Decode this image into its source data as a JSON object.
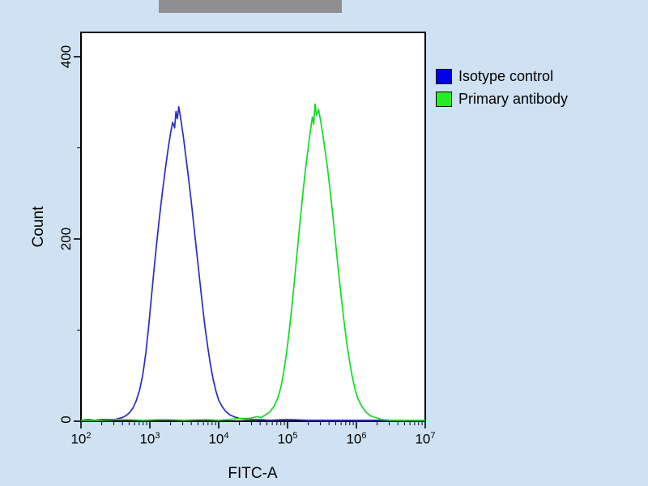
{
  "banner": {
    "text": ""
  },
  "chart_data": {
    "type": "line",
    "subtype": "flow-cytometry-histogram",
    "title": "",
    "xlabel": "FITC-A",
    "ylabel": "Count",
    "x_scale": "log10",
    "xlim": [
      100,
      10000000
    ],
    "ylim": [
      0,
      427
    ],
    "grid": false,
    "legend_position": "upper-right-outside",
    "x_ticks": [
      100,
      1000,
      10000,
      100000,
      1000000,
      10000000
    ],
    "x_ticks_display": [
      {
        "base": "10",
        "exp": "2"
      },
      {
        "base": "10",
        "exp": "3"
      },
      {
        "base": "10",
        "exp": "4"
      },
      {
        "base": "10",
        "exp": "5"
      },
      {
        "base": "10",
        "exp": "6"
      },
      {
        "base": "10",
        "exp": "7"
      }
    ],
    "y_ticks": [
      {
        "value": 0,
        "label": "0"
      },
      {
        "value": 200,
        "label": "200"
      },
      {
        "value": 400,
        "label": "400"
      }
    ],
    "y_minor_ticks": [
      100,
      300
    ],
    "legend": [
      {
        "label": "Isotype control",
        "color": "#0000ee"
      },
      {
        "label": "Primary antibody",
        "color": "#22ee22"
      }
    ],
    "series": [
      {
        "name": "Isotype control",
        "color": "#2a2ac8",
        "peak_x": 2600,
        "peak_count": 345,
        "points_log10x_count": [
          [
            2.0,
            1
          ],
          [
            2.1,
            2
          ],
          [
            2.2,
            1
          ],
          [
            2.3,
            2
          ],
          [
            2.4,
            2
          ],
          [
            2.5,
            2
          ],
          [
            2.55,
            3
          ],
          [
            2.6,
            4
          ],
          [
            2.65,
            6
          ],
          [
            2.7,
            9
          ],
          [
            2.75,
            14
          ],
          [
            2.8,
            22
          ],
          [
            2.85,
            34
          ],
          [
            2.9,
            52
          ],
          [
            2.94,
            74
          ],
          [
            2.98,
            102
          ],
          [
            3.02,
            134
          ],
          [
            3.06,
            166
          ],
          [
            3.1,
            196
          ],
          [
            3.14,
            224
          ],
          [
            3.18,
            250
          ],
          [
            3.22,
            274
          ],
          [
            3.26,
            296
          ],
          [
            3.3,
            316
          ],
          [
            3.33,
            328
          ],
          [
            3.36,
            322
          ],
          [
            3.38,
            340
          ],
          [
            3.4,
            332
          ],
          [
            3.42,
            345
          ],
          [
            3.44,
            336
          ],
          [
            3.46,
            326
          ],
          [
            3.49,
            310
          ],
          [
            3.52,
            292
          ],
          [
            3.56,
            268
          ],
          [
            3.6,
            242
          ],
          [
            3.64,
            214
          ],
          [
            3.68,
            186
          ],
          [
            3.72,
            158
          ],
          [
            3.76,
            130
          ],
          [
            3.8,
            104
          ],
          [
            3.84,
            82
          ],
          [
            3.88,
            62
          ],
          [
            3.92,
            46
          ],
          [
            3.96,
            33
          ],
          [
            4.0,
            23
          ],
          [
            4.05,
            16
          ],
          [
            4.1,
            11
          ],
          [
            4.16,
            7
          ],
          [
            4.22,
            5
          ],
          [
            4.3,
            3
          ],
          [
            4.4,
            2
          ],
          [
            4.55,
            2
          ],
          [
            4.75,
            1
          ],
          [
            5.0,
            2
          ],
          [
            5.3,
            1
          ],
          [
            5.6,
            1
          ],
          [
            6.0,
            1
          ],
          [
            6.5,
            1
          ],
          [
            7.0,
            1
          ]
        ]
      },
      {
        "name": "Primary antibody",
        "color": "#0ddd22",
        "peak_x": 250000,
        "peak_count": 348,
        "points_log10x_count": [
          [
            2.0,
            1
          ],
          [
            2.3,
            1
          ],
          [
            2.6,
            2
          ],
          [
            2.9,
            1
          ],
          [
            3.2,
            2
          ],
          [
            3.5,
            1
          ],
          [
            3.8,
            2
          ],
          [
            4.0,
            1
          ],
          [
            4.15,
            2
          ],
          [
            4.3,
            3
          ],
          [
            4.45,
            3
          ],
          [
            4.55,
            5
          ],
          [
            4.62,
            4
          ],
          [
            4.68,
            7
          ],
          [
            4.74,
            10
          ],
          [
            4.8,
            16
          ],
          [
            4.85,
            24
          ],
          [
            4.9,
            36
          ],
          [
            4.94,
            52
          ],
          [
            4.98,
            72
          ],
          [
            5.02,
            96
          ],
          [
            5.06,
            124
          ],
          [
            5.1,
            154
          ],
          [
            5.14,
            186
          ],
          [
            5.18,
            218
          ],
          [
            5.22,
            248
          ],
          [
            5.26,
            276
          ],
          [
            5.3,
            300
          ],
          [
            5.33,
            318
          ],
          [
            5.36,
            334
          ],
          [
            5.38,
            326
          ],
          [
            5.4,
            348
          ],
          [
            5.42,
            336
          ],
          [
            5.45,
            342
          ],
          [
            5.48,
            330
          ],
          [
            5.51,
            316
          ],
          [
            5.54,
            300
          ],
          [
            5.58,
            278
          ],
          [
            5.62,
            252
          ],
          [
            5.66,
            224
          ],
          [
            5.7,
            194
          ],
          [
            5.74,
            164
          ],
          [
            5.78,
            136
          ],
          [
            5.82,
            110
          ],
          [
            5.86,
            86
          ],
          [
            5.9,
            66
          ],
          [
            5.94,
            49
          ],
          [
            5.98,
            35
          ],
          [
            6.02,
            25
          ],
          [
            6.08,
            16
          ],
          [
            6.14,
            10
          ],
          [
            6.2,
            6
          ],
          [
            6.28,
            4
          ],
          [
            6.36,
            2
          ],
          [
            6.5,
            1
          ],
          [
            6.7,
            1
          ],
          [
            7.0,
            1
          ]
        ]
      }
    ]
  }
}
